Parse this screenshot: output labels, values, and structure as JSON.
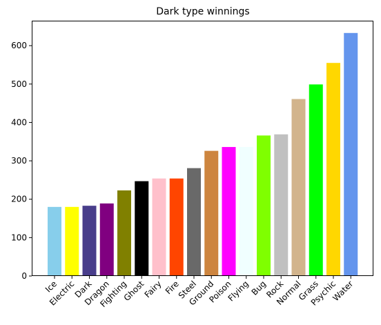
{
  "chart_data": {
    "type": "bar",
    "title": "Dark type winnings",
    "xlabel": "",
    "ylabel": "",
    "categories": [
      "Ice",
      "Electric",
      "Dark",
      "Dragon",
      "Fighting",
      "Ghost",
      "Fairy",
      "Fire",
      "Steel",
      "Ground",
      "Poison",
      "Flying",
      "Bug",
      "Rock",
      "Normal",
      "Grass",
      "Psychic",
      "Water"
    ],
    "values": [
      180,
      180,
      183,
      189,
      223,
      247,
      254,
      254,
      281,
      326,
      336,
      336,
      366,
      369,
      461,
      499,
      555,
      633
    ],
    "colors": [
      "#87CEEB",
      "#FFFF00",
      "#483D8B",
      "#800080",
      "#808000",
      "#000000",
      "#FFC0CB",
      "#FF4500",
      "#696969",
      "#CD853F",
      "#FF00FF",
      "#F0FFFF",
      "#7FFF00",
      "#C0C0C0",
      "#D2B48C",
      "#00FF00",
      "#FFD700",
      "#6495ED"
    ],
    "yticks": [
      0,
      100,
      200,
      300,
      400,
      500,
      600
    ],
    "ylim": [
      0,
      665
    ],
    "grid": false,
    "legend": "none"
  }
}
